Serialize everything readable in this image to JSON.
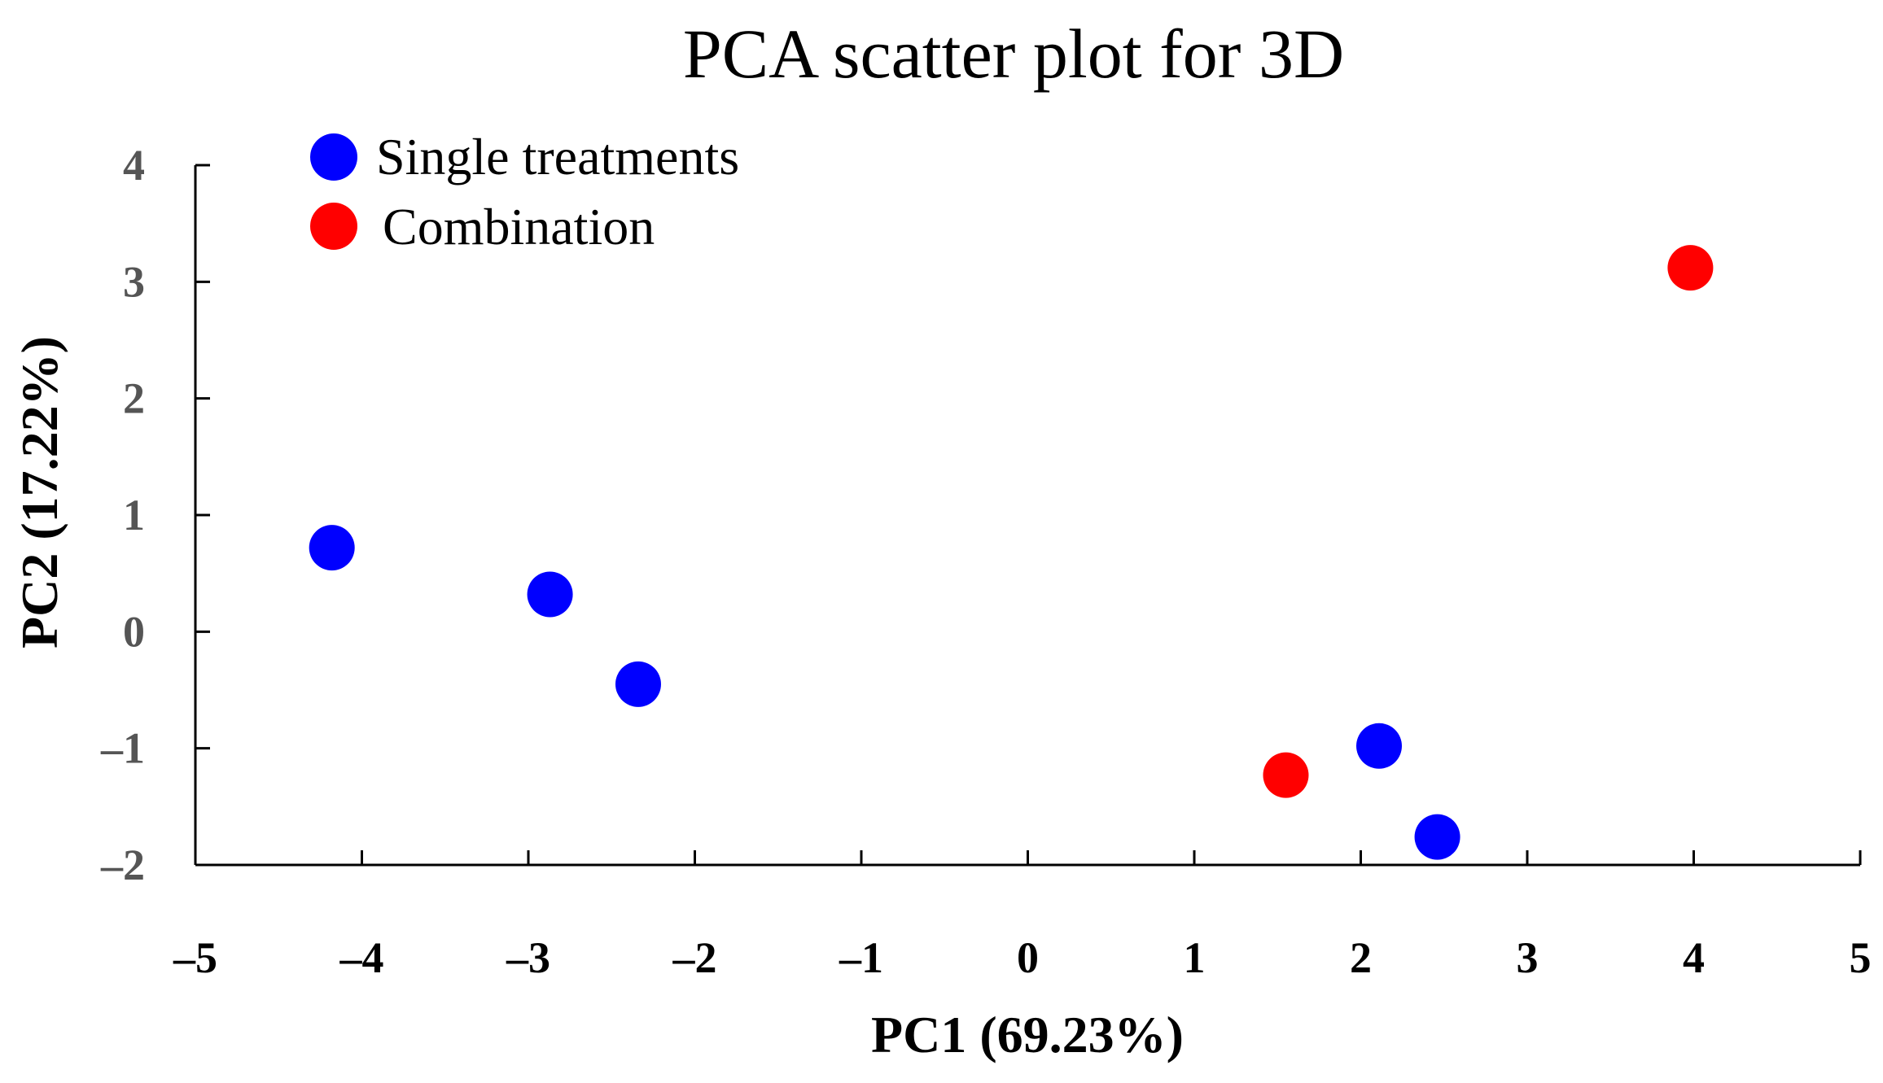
{
  "chart_data": {
    "type": "scatter",
    "title": "PCA scatter plot for 3D",
    "xlabel": "PC1 (69.23%)",
    "ylabel": "PC2 (17.22%)",
    "xlim": [
      -5,
      5
    ],
    "ylim": [
      -2,
      4
    ],
    "x_ticks": [
      "–5",
      "–4",
      "–3",
      "–2",
      "–1",
      "0",
      "1",
      "2",
      "3",
      "4",
      "5"
    ],
    "y_ticks": [
      "–2",
      "–1",
      "0",
      "1",
      "2",
      "3",
      "4"
    ],
    "grid": false,
    "legend_position": "top-left",
    "series": [
      {
        "name": "Single treatments",
        "color": "#0000ff",
        "points": [
          {
            "x": -4.18,
            "y": 0.72
          },
          {
            "x": -2.87,
            "y": 0.32
          },
          {
            "x": -2.34,
            "y": -0.45
          },
          {
            "x": 2.11,
            "y": -0.98
          },
          {
            "x": 2.46,
            "y": -1.76
          }
        ]
      },
      {
        "name": "Combination",
        "color": "#ff0000",
        "points": [
          {
            "x": 1.55,
            "y": -1.23
          },
          {
            "x": 3.98,
            "y": 3.12
          }
        ]
      }
    ]
  }
}
